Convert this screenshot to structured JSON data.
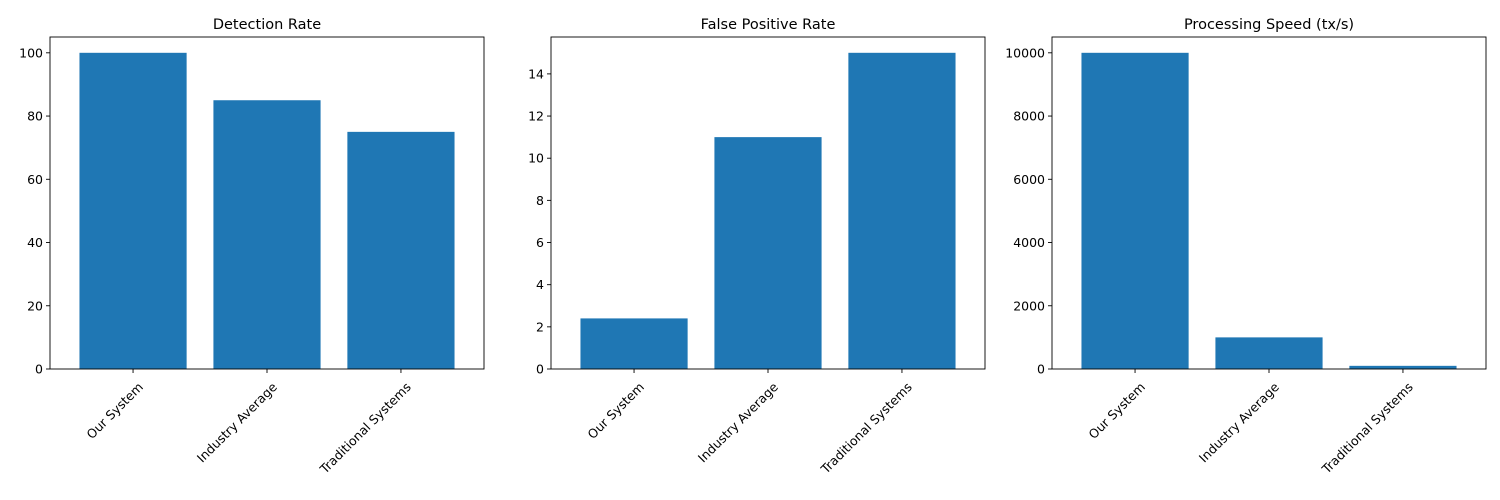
{
  "chart_data": [
    {
      "type": "bar",
      "title": "Detection Rate",
      "categories": [
        "Our System",
        "Industry Average",
        "Traditional Systems"
      ],
      "values": [
        100,
        85,
        75
      ],
      "ylim": [
        0,
        105
      ],
      "yticks": [
        0,
        20,
        40,
        60,
        80,
        100
      ],
      "color": "#1f77b4",
      "grid": false
    },
    {
      "type": "bar",
      "title": "False Positive Rate",
      "categories": [
        "Our System",
        "Industry Average",
        "Traditional Systems"
      ],
      "values": [
        2.4,
        11,
        15
      ],
      "ylim": [
        0,
        15.75
      ],
      "yticks": [
        0,
        2,
        4,
        6,
        8,
        10,
        12,
        14
      ],
      "color": "#1f77b4",
      "grid": false
    },
    {
      "type": "bar",
      "title": "Processing Speed (tx/s)",
      "categories": [
        "Our System",
        "Industry Average",
        "Traditional Systems"
      ],
      "values": [
        10000,
        1000,
        100
      ],
      "ylim": [
        0,
        10500
      ],
      "yticks": [
        0,
        2000,
        4000,
        6000,
        8000,
        10000
      ],
      "color": "#1f77b4",
      "grid": false
    }
  ]
}
